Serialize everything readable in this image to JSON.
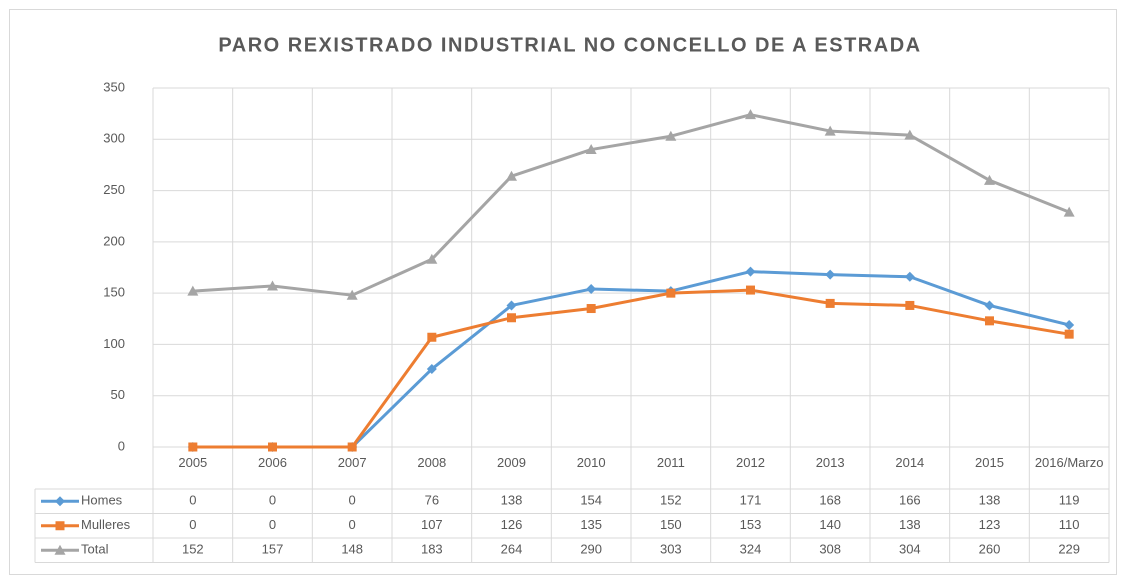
{
  "chart_data": {
    "type": "line",
    "title": "PARO REXISTRADO INDUSTRIAL NO CONCELLO DE A ESTRADA",
    "categories": [
      "2005",
      "2006",
      "2007",
      "2008",
      "2009",
      "2010",
      "2011",
      "2012",
      "2013",
      "2014",
      "2015",
      "2016/Marzo"
    ],
    "series": [
      {
        "name": "Homes",
        "color": "#5b9bd5",
        "marker": "diamond",
        "values": [
          0,
          0,
          0,
          76,
          138,
          154,
          152,
          171,
          168,
          166,
          138,
          119
        ]
      },
      {
        "name": "Mulleres",
        "color": "#ed7d31",
        "marker": "square",
        "values": [
          0,
          0,
          0,
          107,
          126,
          135,
          150,
          153,
          140,
          138,
          123,
          110
        ]
      },
      {
        "name": "Total",
        "color": "#a5a5a5",
        "marker": "triangle",
        "values": [
          152,
          157,
          148,
          183,
          264,
          290,
          303,
          324,
          308,
          304,
          260,
          229
        ]
      }
    ],
    "ylim": [
      0,
      350
    ],
    "yticks": [
      0,
      50,
      100,
      150,
      200,
      250,
      300,
      350
    ],
    "grid": true
  }
}
